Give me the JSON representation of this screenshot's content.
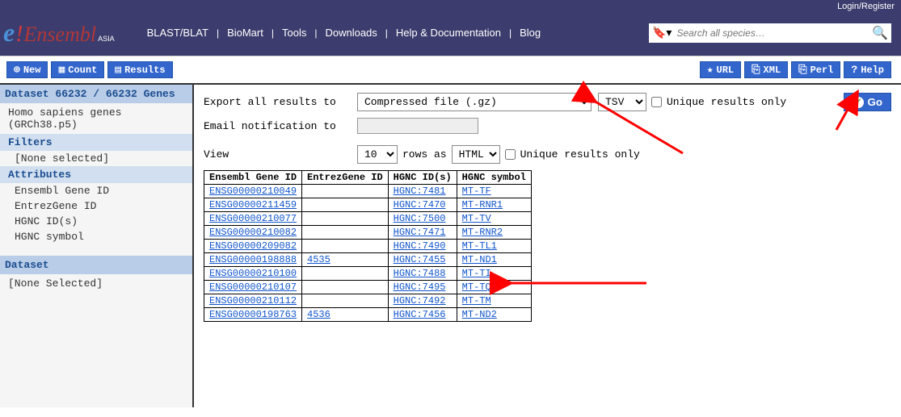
{
  "topbar": {
    "login": "Login/Register"
  },
  "logo": {
    "text": "Ensembl",
    "asia": "ASIA"
  },
  "nav": [
    "BLAST/BLAT",
    "BioMart",
    "Tools",
    "Downloads",
    "Help & Documentation",
    "Blog"
  ],
  "search": {
    "placeholder": "Search all species…"
  },
  "toolbar": {
    "left": [
      {
        "icon": "⊕",
        "label": "New"
      },
      {
        "icon": "▦",
        "label": "Count"
      },
      {
        "icon": "▤",
        "label": "Results"
      }
    ],
    "right": [
      {
        "icon": "★",
        "label": "URL"
      },
      {
        "icon": "⎘",
        "label": "XML"
      },
      {
        "icon": "⎘",
        "label": "Perl"
      },
      {
        "icon": "?",
        "label": "Help"
      }
    ]
  },
  "sidebar": {
    "dataset_head": "Dataset 66232 / 66232 Genes",
    "species": "Homo sapiens genes (GRCh38.p5)",
    "filters_head": "Filters",
    "filters_none": "[None selected]",
    "attr_head": "Attributes",
    "attrs": [
      "Ensembl Gene ID",
      "EntrezGene ID",
      "HGNC ID(s)",
      "HGNC symbol"
    ],
    "dataset2_head": "Dataset",
    "dataset2_none": "[None Selected]"
  },
  "export": {
    "label": "Export all results to",
    "file_format": "Compressed file (.gz)",
    "out_format": "TSV",
    "unique": "Unique results only",
    "go": "Go",
    "email_label": "Email notification to"
  },
  "view": {
    "label": "View",
    "rows": "10",
    "rows_as": "rows as",
    "render": "HTML",
    "unique": "Unique results only"
  },
  "table": {
    "headers": [
      "Ensembl Gene ID",
      "EntrezGene ID",
      "HGNC ID(s)",
      "HGNC symbol"
    ],
    "rows": [
      [
        "ENSG00000210049",
        "",
        "HGNC:7481",
        "MT-TF"
      ],
      [
        "ENSG00000211459",
        "",
        "HGNC:7470",
        "MT-RNR1"
      ],
      [
        "ENSG00000210077",
        "",
        "HGNC:7500",
        "MT-TV"
      ],
      [
        "ENSG00000210082",
        "",
        "HGNC:7471",
        "MT-RNR2"
      ],
      [
        "ENSG00000209082",
        "",
        "HGNC:7490",
        "MT-TL1"
      ],
      [
        "ENSG00000198888",
        "4535",
        "HGNC:7455",
        "MT-ND1"
      ],
      [
        "ENSG00000210100",
        "",
        "HGNC:7488",
        "MT-TI"
      ],
      [
        "ENSG00000210107",
        "",
        "HGNC:7495",
        "MT-TQ"
      ],
      [
        "ENSG00000210112",
        "",
        "HGNC:7492",
        "MT-TM"
      ],
      [
        "ENSG00000198763",
        "4536",
        "HGNC:7456",
        "MT-ND2"
      ]
    ]
  },
  "arrows": {
    "color": "#ff0000"
  }
}
